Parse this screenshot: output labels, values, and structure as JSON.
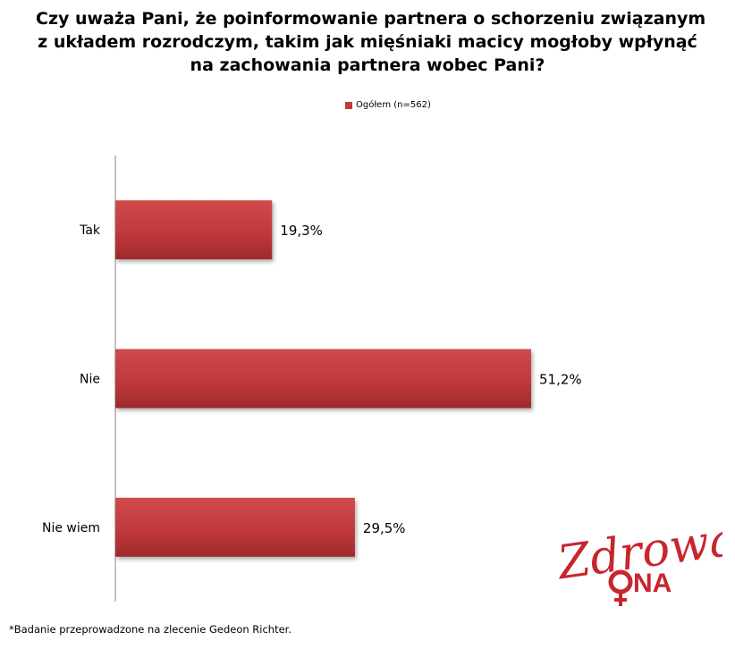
{
  "title_lines": [
    "Czy uważa Pani, że poinformowanie partnera o schorzeniu związanym",
    "z układem rozrodczym, takim jak mięśniaki macicy mogłoby wpłynąć",
    "na zachowania partnera wobec Pani?"
  ],
  "legend": {
    "label": "Ogółem (n=562)",
    "color": "#c0393b"
  },
  "footnote": "*Badanie przeprowadzone na zlecenie Gedeon Richter.",
  "logo": {
    "text": "Zdrowa",
    "sub": "ONA",
    "color": "#c8252c"
  },
  "chart_data": {
    "type": "bar",
    "orientation": "horizontal",
    "categories": [
      "Tak",
      "Nie",
      "Nie wiem"
    ],
    "series": [
      {
        "name": "Ogółem (n=562)",
        "values": [
          19.3,
          51.2,
          29.5
        ]
      }
    ],
    "data_labels": [
      "19,3%",
      "51,2%",
      "29,5%"
    ],
    "xlim": [
      0,
      60
    ],
    "grid": false,
    "legend_position": "top"
  }
}
